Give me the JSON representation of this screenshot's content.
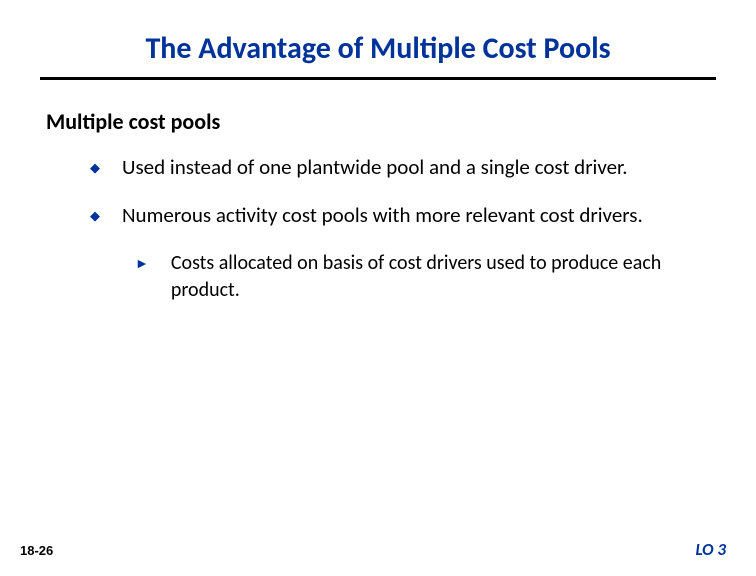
{
  "title": "The Advantage of Multiple Cost Pools",
  "subtitle": "Multiple cost pools",
  "bullets": [
    {
      "text": "Used instead of one plantwide pool and a single cost driver."
    },
    {
      "text": "Numerous activity cost pools with more relevant cost drivers."
    }
  ],
  "subBullets": [
    {
      "text": "Costs allocated on basis of cost drivers used to produce each product."
    }
  ],
  "slideNumber": "18-26",
  "loLabel": "LO 3",
  "colors": {
    "titleColor": "#003399",
    "textColor": "#000000",
    "bulletColor": "#003399",
    "background": "#ffffff",
    "ruleColor": "#000000"
  },
  "typography": {
    "titleFontSize": 30,
    "subtitleFontSize": 22,
    "bodyFontSize": 21,
    "subBodyFontSize": 20,
    "slideNumberFontSize": 13,
    "loFontSize": 17
  }
}
